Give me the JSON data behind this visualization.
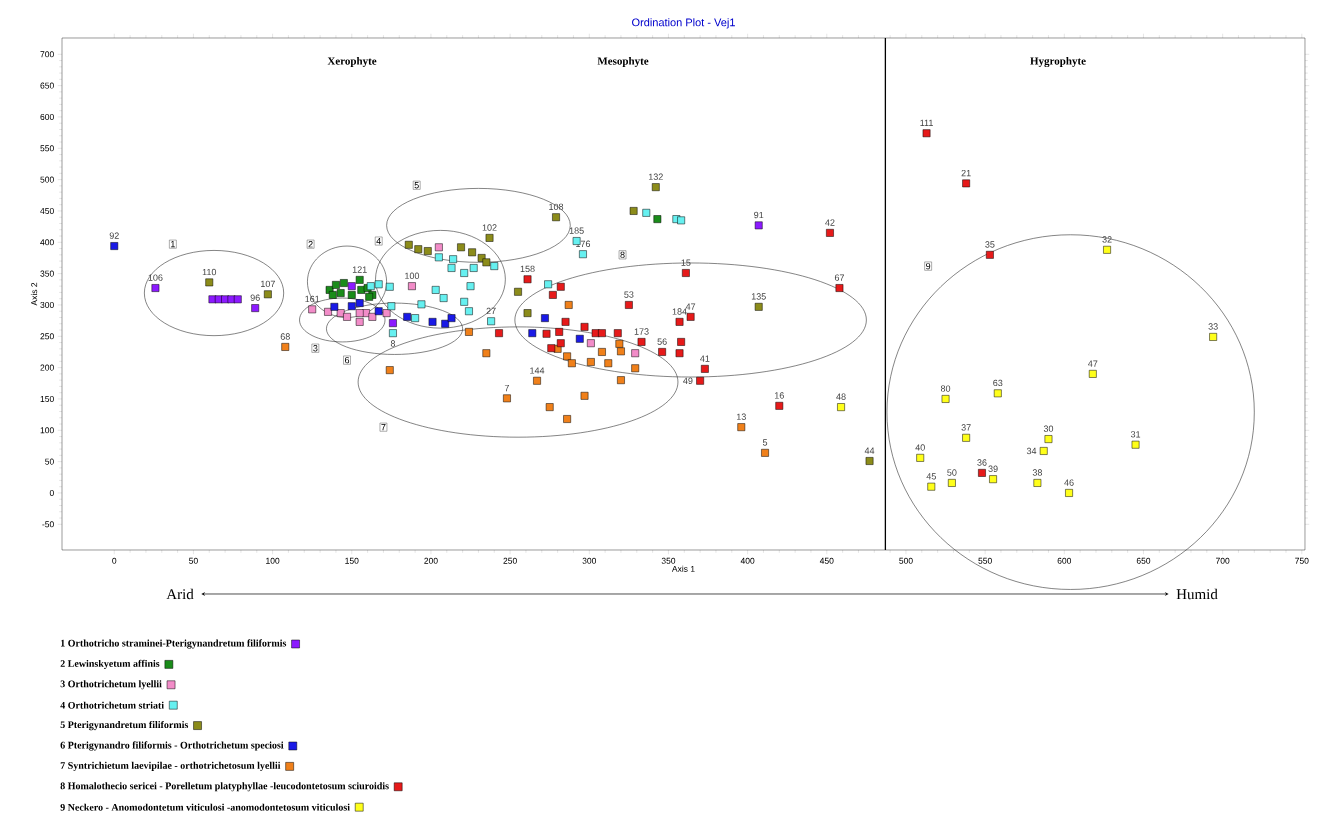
{
  "chart_data": {
    "type": "scatter",
    "title": "Ordination Plot - Vej1",
    "xlabel": "Axis 1",
    "ylabel": "Axis 2",
    "xlim": [
      -33,
      752
    ],
    "ylim": [
      -91,
      726
    ],
    "xticks": [
      0,
      50,
      100,
      150,
      200,
      250,
      300,
      350,
      400,
      450,
      500,
      550,
      600,
      650,
      700,
      750
    ],
    "yticks": [
      -50,
      0,
      50,
      100,
      150,
      200,
      250,
      300,
      350,
      400,
      450,
      500,
      550,
      600,
      650,
      700
    ],
    "marker": "square",
    "legend": "bottom",
    "ref_lines": [
      {
        "axis": "x",
        "value": 487,
        "color": "#000000"
      }
    ],
    "series": [
      {
        "name": "1 Orthotricho straminei-Pterigynandretum filiformis",
        "color": "#8c1aff",
        "x": [
          26,
          62,
          66,
          70,
          74,
          78,
          89,
          150,
          176,
          407
        ],
        "values": [
          327,
          309,
          309,
          309,
          309,
          309,
          295,
          330,
          271,
          427
        ]
      },
      {
        "name": "2 Lewinskyetum affinis",
        "color": "#1a8c1a",
        "x": [
          136,
          140,
          145,
          155,
          156,
          160,
          163,
          138,
          143,
          150,
          161,
          343
        ],
        "values": [
          324,
          332,
          335,
          340,
          324,
          327,
          316,
          316,
          319,
          316,
          313,
          437
        ]
      },
      {
        "name": "3 Orthotrichetum lyellii",
        "color": "#f28cc8",
        "x": [
          125,
          135,
          143,
          147,
          155,
          159,
          163,
          172,
          155,
          188,
          205,
          301,
          329
        ],
        "values": [
          293,
          289,
          287,
          281,
          273,
          287,
          281,
          287,
          287,
          330,
          392,
          239,
          223
        ]
      },
      {
        "name": "4 Orthotrichetum striati",
        "color": "#66f0f0",
        "x": [
          162,
          167,
          174,
          175,
          176,
          190,
          194,
          205,
          214,
          213,
          221,
          227,
          225,
          203,
          208,
          221,
          224,
          240,
          238,
          336,
          355,
          358,
          292,
          296,
          274
        ],
        "values": [
          330,
          333,
          329,
          298,
          255,
          279,
          301,
          376,
          373,
          359,
          351,
          359,
          330,
          324,
          311,
          305,
          290,
          362,
          274,
          447,
          437,
          435,
          402,
          381,
          333
        ]
      },
      {
        "name": "5 Pterigynandretum filiformis",
        "color": "#8c8c1a",
        "x": [
          60,
          97,
          186,
          192,
          198,
          219,
          226,
          232,
          235,
          237,
          255,
          261,
          279,
          328,
          342,
          407,
          477
        ],
        "values": [
          336,
          317,
          396,
          389,
          386,
          392,
          384,
          375,
          368,
          407,
          321,
          287,
          440,
          450,
          488,
          297,
          51
        ]
      },
      {
        "name": "6 Pterigynandro filiformis - Orthotrichetum speciosi",
        "color": "#1a1ae6",
        "x": [
          0,
          139,
          150,
          155,
          167,
          185,
          201,
          209,
          213,
          272,
          264,
          294
        ],
        "values": [
          394,
          297,
          298,
          303,
          290,
          281,
          273,
          270,
          279,
          279,
          255,
          246
        ]
      },
      {
        "name": "7 Syntrichietum laevipilae - orthotrichetosum lyellii",
        "color": "#f0801a",
        "x": [
          108,
          174,
          224,
          235,
          267,
          248,
          275,
          286,
          297,
          287,
          280,
          286,
          289,
          301,
          308,
          312,
          319,
          320,
          329,
          320,
          396,
          411
        ],
        "values": [
          233,
          196,
          257,
          223,
          179,
          151,
          137,
          118,
          155,
          300,
          230,
          218,
          207,
          209,
          225,
          207,
          238,
          226,
          199,
          180,
          105,
          64
        ]
      },
      {
        "name": "8 Homalothecio sericei - Porelletum platyphyllae  -leucodontetosum sciuroidis",
        "color": "#e61a1a",
        "x": [
          243,
          261,
          282,
          277,
          285,
          297,
          281,
          273,
          276,
          282,
          304,
          308,
          318,
          325,
          333,
          346,
          357,
          358,
          357,
          364,
          361,
          373,
          370,
          452,
          458,
          420,
          513,
          538,
          553,
          548
        ],
        "values": [
          255,
          341,
          329,
          316,
          273,
          265,
          257,
          254,
          231,
          239,
          255,
          255,
          255,
          300,
          241,
          225,
          223,
          241,
          273,
          281,
          351,
          198,
          179,
          415,
          327,
          139,
          574,
          494,
          380,
          32
        ]
      },
      {
        "name": "9 Neckero - Anomodontetum viticulosi -anomodontetosum viticulosi",
        "color": "#ffff1a",
        "x": [
          459,
          627,
          694,
          618,
          558,
          525,
          538,
          590,
          587,
          645,
          509,
          516,
          529,
          555,
          583,
          603
        ],
        "values": [
          137,
          388,
          249,
          190,
          159,
          150,
          88,
          86,
          67,
          77,
          56,
          10,
          16,
          22,
          16,
          0
        ]
      }
    ],
    "annotations": [
      "Xerophyte",
      "Mesophyte",
      "Hygrophyte",
      "Arid",
      "Humid",
      {
        "text": "1",
        "x": 37,
        "y": 397
      },
      {
        "text": "2",
        "x": 124,
        "y": 397
      },
      {
        "text": "3",
        "x": 127,
        "y": 231
      },
      {
        "text": "4",
        "x": 167,
        "y": 402
      },
      {
        "text": "5",
        "x": 191,
        "y": 491
      },
      {
        "text": "6",
        "x": 147,
        "y": 212
      },
      {
        "text": "7",
        "x": 170,
        "y": 105
      },
      {
        "text": "8",
        "x": 321,
        "y": 380
      },
      {
        "text": "9",
        "x": 514,
        "y": 362
      },
      {
        "text": "92",
        "x": 0,
        "y": 394
      },
      {
        "text": "106",
        "x": 26,
        "y": 327
      },
      {
        "text": "110",
        "x": 60,
        "y": 336
      },
      {
        "text": "96",
        "x": 89,
        "y": 295
      },
      {
        "text": "107",
        "x": 97,
        "y": 317
      },
      {
        "text": "68",
        "x": 108,
        "y": 233
      },
      {
        "text": "161",
        "x": 125,
        "y": 293
      },
      {
        "text": "121",
        "x": 155,
        "y": 340
      },
      {
        "text": "100",
        "x": 188,
        "y": 330
      },
      {
        "text": "8",
        "x": 176,
        "y": 255
      },
      {
        "text": "102",
        "x": 237,
        "y": 407
      },
      {
        "text": "27",
        "x": 238,
        "y": 274
      },
      {
        "text": "158",
        "x": 261,
        "y": 341
      },
      {
        "text": "108",
        "x": 279,
        "y": 440
      },
      {
        "text": "185",
        "x": 292,
        "y": 402
      },
      {
        "text": "176",
        "x": 296,
        "y": 381
      },
      {
        "text": "132",
        "x": 342,
        "y": 488
      },
      {
        "text": "53",
        "x": 325,
        "y": 300
      },
      {
        "text": "173",
        "x": 333,
        "y": 241
      },
      {
        "text": "56",
        "x": 346,
        "y": 225
      },
      {
        "text": "184",
        "x": 357,
        "y": 273
      },
      {
        "text": "47",
        "x": 364,
        "y": 281
      },
      {
        "text": "15",
        "x": 361,
        "y": 351
      },
      {
        "text": "91",
        "x": 407,
        "y": 427
      },
      {
        "text": "135",
        "x": 407,
        "y": 297
      },
      {
        "text": "42",
        "x": 452,
        "y": 415
      },
      {
        "text": "67",
        "x": 458,
        "y": 327
      },
      {
        "text": "41",
        "x": 373,
        "y": 198
      },
      {
        "text": "49",
        "x": 370,
        "y": 179
      },
      {
        "text": "7",
        "x": 248,
        "y": 151
      },
      {
        "text": "144",
        "x": 267,
        "y": 179
      },
      {
        "text": "16",
        "x": 420,
        "y": 139
      },
      {
        "text": "48",
        "x": 459,
        "y": 137
      },
      {
        "text": "13",
        "x": 396,
        "y": 105
      },
      {
        "text": "5",
        "x": 411,
        "y": 64
      },
      {
        "text": "44",
        "x": 477,
        "y": 51
      },
      {
        "text": "111",
        "x": 513,
        "y": 574
      },
      {
        "text": "21",
        "x": 538,
        "y": 494
      },
      {
        "text": "35",
        "x": 553,
        "y": 380
      },
      {
        "text": "32",
        "x": 627,
        "y": 388
      },
      {
        "text": "33",
        "x": 694,
        "y": 249
      },
      {
        "text": "47",
        "x": 618,
        "y": 190
      },
      {
        "text": "63",
        "x": 558,
        "y": 159
      },
      {
        "text": "80",
        "x": 525,
        "y": 150
      },
      {
        "text": "37",
        "x": 538,
        "y": 88
      },
      {
        "text": "30",
        "x": 590,
        "y": 86
      },
      {
        "text": "34",
        "x": 587,
        "y": 67
      },
      {
        "text": "31",
        "x": 645,
        "y": 77
      },
      {
        "text": "40",
        "x": 509,
        "y": 56
      },
      {
        "text": "45",
        "x": 516,
        "y": 10
      },
      {
        "text": "50",
        "x": 529,
        "y": 16
      },
      {
        "text": "36",
        "x": 548,
        "y": 32
      },
      {
        "text": "39",
        "x": 555,
        "y": 22
      },
      {
        "text": "38",
        "x": 583,
        "y": 16
      },
      {
        "text": "46",
        "x": 603,
        "y": 0
      }
    ]
  }
}
